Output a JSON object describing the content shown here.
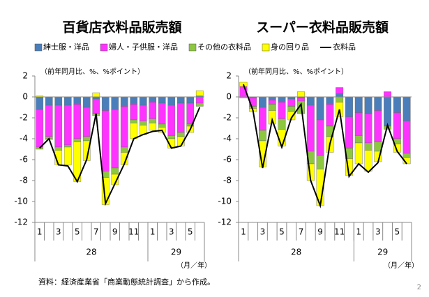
{
  "legend_position": "top",
  "source": "資料：経済産業省「商業動態統計調査」から作成。",
  "page_number": "2",
  "chart_data": [
    {
      "type": "bar",
      "title": "百貨店衣料品販売額",
      "y_axis_label": "（前年同月比、%、%ポイント）",
      "categories": [
        "1",
        null,
        "3",
        null,
        "5",
        null,
        "7",
        null,
        "9",
        null,
        "11",
        null,
        "1",
        null,
        "3",
        null,
        "5",
        null
      ],
      "year_labels": [
        "28",
        "29"
      ],
      "x_unit_label": "（月／年）",
      "ylim": [
        -12,
        2
      ],
      "yticks": [
        -12,
        -10,
        -8,
        -6,
        -4,
        -2,
        0,
        2
      ],
      "series": [
        {
          "name": "紳士服・洋品",
          "color": "#4a7ebb",
          "values": [
            -1.2,
            -0.8,
            -0.8,
            -0.8,
            -0.7,
            -1.0,
            -0.2,
            -1.3,
            -1.2,
            -0.9,
            -0.7,
            -0.8,
            -0.5,
            -0.6,
            -0.8,
            -0.6,
            -0.6,
            0.1
          ]
        },
        {
          "name": "婦人・子供服・洋品",
          "color": "#ff33ff",
          "values": [
            -3.6,
            -3.0,
            -4.0,
            -3.8,
            -3.3,
            -2.8,
            -1.4,
            -5.8,
            -5.6,
            -3.9,
            -1.5,
            -1.5,
            -1.6,
            -2.0,
            -2.9,
            -2.8,
            -2.0,
            -0.6
          ]
        },
        {
          "name": "その他の衣料品",
          "color": "#8dc63f",
          "values": [
            -0.2,
            -0.2,
            -0.3,
            -0.2,
            -0.3,
            -0.4,
            -0.2,
            -0.6,
            -0.6,
            -0.5,
            -0.3,
            -0.4,
            -0.4,
            -0.3,
            -0.3,
            -0.4,
            -0.2,
            -0.3
          ]
        },
        {
          "name": "身の回り品",
          "color": "#ffff00",
          "values": [
            0.1,
            -0.1,
            -1.4,
            -1.7,
            -3.8,
            -1.9,
            0.4,
            -2.6,
            -1.0,
            -1.2,
            -1.5,
            -0.9,
            -0.7,
            -0.5,
            -0.9,
            -0.9,
            -0.6,
            0.5
          ]
        },
        {
          "name": "衣料品",
          "type": "line",
          "color": "#000000",
          "values": [
            -4.9,
            -4.0,
            -6.5,
            -6.6,
            -8.1,
            -6.0,
            -1.6,
            -10.2,
            -8.3,
            -6.4,
            -4.0,
            -3.6,
            -3.3,
            -3.2,
            -4.9,
            -4.7,
            -3.1,
            -1.0
          ]
        }
      ]
    },
    {
      "type": "bar",
      "title": "スーパー衣料品販売額",
      "y_axis_label": "（前年同月比、%、%ポイント）",
      "categories": [
        "1",
        null,
        "3",
        null,
        "5",
        null,
        "7",
        null,
        "9",
        null,
        "11",
        null,
        "1",
        null,
        "3",
        null,
        "5",
        null
      ],
      "year_labels": [
        "28",
        "29"
      ],
      "x_unit_label": "（月／年）",
      "ylim": [
        -12,
        2
      ],
      "yticks": [
        -12,
        -10,
        -8,
        -6,
        -4,
        -2,
        0,
        2
      ],
      "series": [
        {
          "color": "#4a7ebb",
          "values": [
            0,
            -0.1,
            -1.0,
            -0.3,
            -0.5,
            -0.2,
            -0.1,
            -0.8,
            -2.2,
            -0.7,
            0.3,
            -1.9,
            -1.5,
            -1.6,
            -1.3,
            -2.8,
            -1.5,
            -2.3
          ]
        },
        {
          "color": "#ff33ff",
          "values": [
            1.0,
            -0.8,
            -2.2,
            -0.4,
            -1.6,
            -0.7,
            -0.3,
            -4.4,
            -3.4,
            -2.1,
            0.6,
            -3.0,
            -2.2,
            -2.8,
            -3.0,
            0.5,
            -2.5,
            -3.1
          ]
        },
        {
          "color": "#8dc63f",
          "values": [
            -0.1,
            -0.2,
            -1.0,
            -0.6,
            -1.0,
            -0.5,
            -1.2,
            -1.2,
            -1.3,
            -1.0,
            -0.5,
            -1.0,
            -0.7,
            -0.7,
            -0.9,
            -0.3,
            -0.5,
            -0.4
          ]
        },
        {
          "color": "#ffff00",
          "values": [
            0.4,
            -0.3,
            -2.5,
            -1.3,
            -1.6,
            -0.8,
            0.5,
            -1.6,
            -3.5,
            -1.5,
            -1.4,
            -1.6,
            -2.0,
            -2.0,
            -1.0,
            0,
            -0.8,
            -0.6
          ]
        },
        {
          "type": "line",
          "color": "#000000",
          "values": [
            1.2,
            -1.3,
            -6.8,
            -2.2,
            -4.8,
            -2.0,
            -0.7,
            -8.0,
            -10.4,
            -4.5,
            -1.2,
            -7.6,
            -6.4,
            -7.2,
            -6.3,
            -2.7,
            -5.2,
            -6.4
          ]
        }
      ]
    }
  ]
}
